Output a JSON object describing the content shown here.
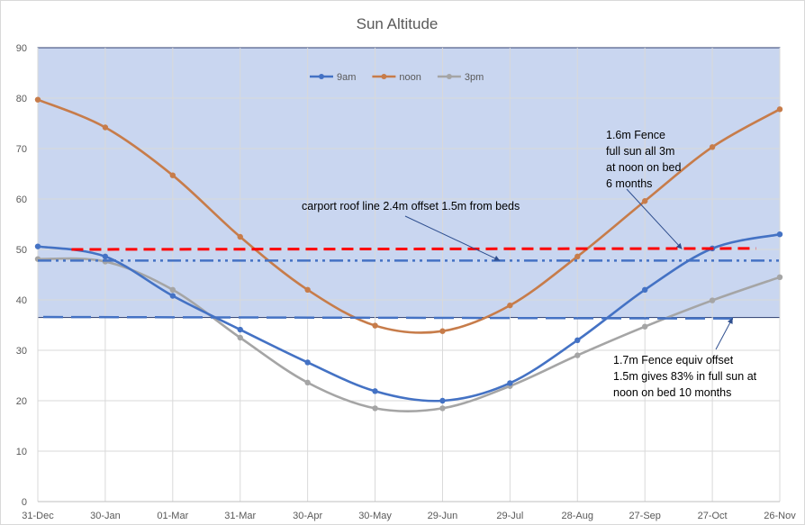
{
  "chart_data": {
    "type": "line",
    "title": "Sun Altitude",
    "xlabel": "",
    "ylabel": "",
    "ylim": [
      0,
      90
    ],
    "yticks": [
      "0",
      "10",
      "20",
      "30",
      "40",
      "50",
      "60",
      "70",
      "80",
      "90"
    ],
    "categories": [
      "31-Dec",
      "30-Jan",
      "01-Mar",
      "31-Mar",
      "30-Apr",
      "30-May",
      "29-Jun",
      "29-Jul",
      "28-Aug",
      "27-Sep",
      "27-Oct",
      "26-Nov"
    ],
    "grid": true,
    "legend_position": "top",
    "series": [
      {
        "name": "9am",
        "color": "#4472c4",
        "values": [
          50.6,
          48.6,
          40.8,
          34.1,
          27.6,
          21.9,
          20.0,
          23.5,
          32.0,
          42.0,
          50.2,
          53.0
        ]
      },
      {
        "name": "noon",
        "color": "#c77c4a",
        "values": [
          79.7,
          74.2,
          64.7,
          52.5,
          42.0,
          34.9,
          33.8,
          38.9,
          48.6,
          59.6,
          70.3,
          77.8
        ]
      },
      {
        "name": "3pm",
        "color": "#a5a5a5",
        "values": [
          48.1,
          47.6,
          42.0,
          32.5,
          23.6,
          18.5,
          18.5,
          22.9,
          29.0,
          34.7,
          39.9,
          44.5
        ]
      }
    ],
    "shaded_region": {
      "ymin": 36.5,
      "ymax": 90,
      "color": "#c9d6f0"
    },
    "reference_lines": [
      {
        "id": "carport",
        "y_start": 50.0,
        "y_end": 50.2,
        "x_start": 0.5,
        "x_end": 10.65,
        "color": "#ff0000",
        "style": "dash"
      },
      {
        "id": "fence16",
        "y_start": 47.8,
        "y_end": 47.8,
        "x_start": 0,
        "x_end": 11,
        "color": "#4472c4",
        "style": "dashdotdot"
      },
      {
        "id": "fence17",
        "y_start": 36.6,
        "y_end": 36.3,
        "x_start": 0.08,
        "x_end": 10.35,
        "color": "#4472c4",
        "style": "longdash"
      }
    ],
    "annotations": [
      {
        "id": "carport",
        "lines": [
          "carport roof line 2.4m offset 1.5m from beds"
        ],
        "arrow_to": {
          "x": 6.85,
          "y": 47.8
        }
      },
      {
        "id": "fence16",
        "lines": [
          "1.6m Fence",
          "full sun all 3m",
          "at noon on bed",
          "6 months"
        ],
        "arrow_to": {
          "x": 9.55,
          "y": 50.1
        }
      },
      {
        "id": "fence17",
        "lines": [
          "1.7m Fence equiv offset",
          "1.5m gives 83% in full sun at",
          "noon on bed 10 months"
        ],
        "arrow_to": {
          "x": 10.3,
          "y": 36.4
        }
      }
    ]
  }
}
